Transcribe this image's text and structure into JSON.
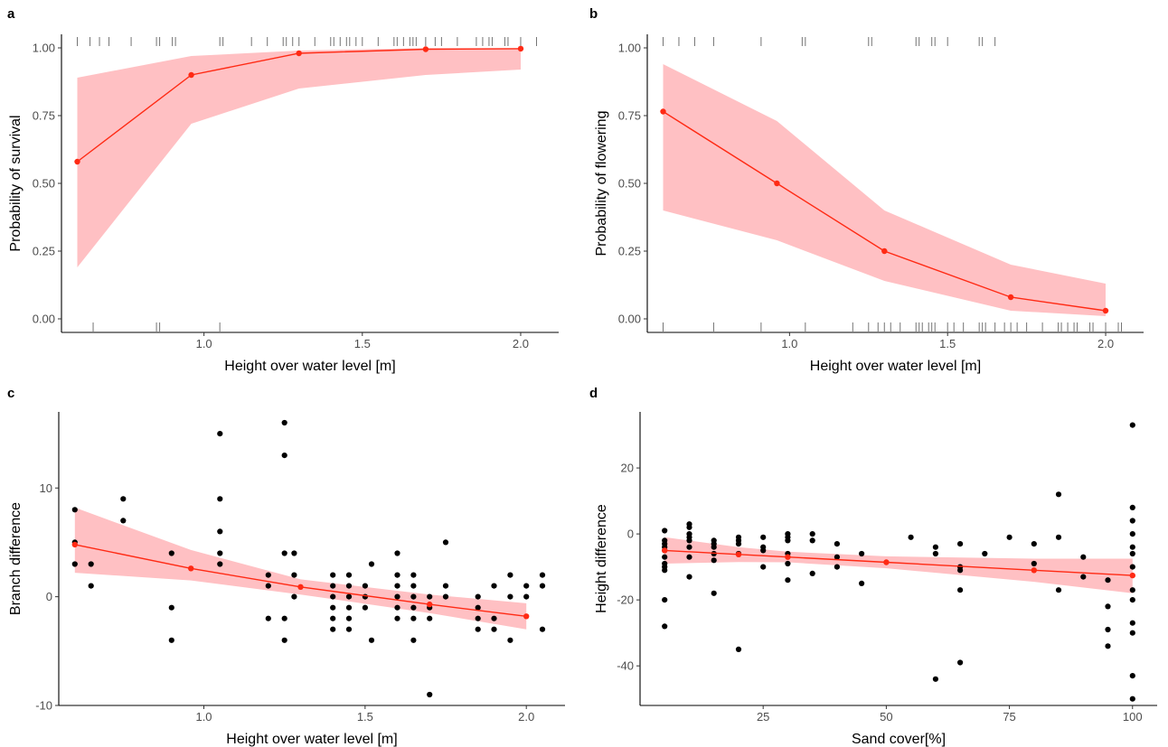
{
  "chart_data": [
    {
      "tag": "a",
      "type": "line",
      "xlabel": "Height over water level [m]",
      "ylabel": "Probability of survival",
      "xlim": [
        0.55,
        2.12
      ],
      "ylim": [
        -0.05,
        1.05
      ],
      "xticks": [
        {
          "v": 1.0,
          "t": "1.0"
        },
        {
          "v": 1.5,
          "t": "1.5"
        },
        {
          "v": 2.0,
          "t": "2.0"
        }
      ],
      "yticks": [
        {
          "v": 0,
          "t": "0.00"
        },
        {
          "v": 0.25,
          "t": "0.25"
        },
        {
          "v": 0.5,
          "t": "0.50"
        },
        {
          "v": 0.75,
          "t": "0.75"
        },
        {
          "v": 1.0,
          "t": "1.00"
        }
      ],
      "grid": false,
      "fit": {
        "x": [
          0.6,
          0.96,
          1.3,
          1.7,
          2.0
        ],
        "y": [
          0.58,
          0.9,
          0.98,
          0.995,
          0.997
        ],
        "lower": [
          0.19,
          0.72,
          0.85,
          0.9,
          0.92
        ],
        "upper": [
          0.89,
          0.97,
          0.99,
          0.999,
          0.999
        ]
      },
      "rug_top": [
        0.6,
        0.64,
        0.67,
        0.7,
        0.77,
        0.85,
        0.86,
        0.9,
        0.91,
        1.05,
        1.06,
        1.15,
        1.2,
        1.25,
        1.26,
        1.28,
        1.3,
        1.35,
        1.4,
        1.41,
        1.43,
        1.45,
        1.46,
        1.48,
        1.5,
        1.55,
        1.6,
        1.61,
        1.63,
        1.65,
        1.66,
        1.67,
        1.7,
        1.73,
        1.75,
        1.8,
        1.86,
        1.88,
        1.9,
        1.91,
        1.95,
        1.96,
        2.0,
        2.05
      ],
      "rug_bottom": [
        0.65,
        0.85,
        0.86,
        1.05
      ]
    },
    {
      "tag": "b",
      "type": "line",
      "xlabel": "Height over water level [m]",
      "ylabel": "Probability of flowering",
      "xlim": [
        0.55,
        2.12
      ],
      "ylim": [
        -0.05,
        1.05
      ],
      "xticks": [
        {
          "v": 1.0,
          "t": "1.0"
        },
        {
          "v": 1.5,
          "t": "1.5"
        },
        {
          "v": 2.0,
          "t": "2.0"
        }
      ],
      "yticks": [
        {
          "v": 0,
          "t": "0.00"
        },
        {
          "v": 0.25,
          "t": "0.25"
        },
        {
          "v": 0.5,
          "t": "0.50"
        },
        {
          "v": 0.75,
          "t": "0.75"
        },
        {
          "v": 1.0,
          "t": "1.00"
        }
      ],
      "grid": false,
      "fit": {
        "x": [
          0.6,
          0.96,
          1.3,
          1.7,
          2.0
        ],
        "y": [
          0.765,
          0.5,
          0.25,
          0.08,
          0.03
        ],
        "lower": [
          0.4,
          0.29,
          0.14,
          0.03,
          0.01
        ],
        "upper": [
          0.94,
          0.73,
          0.4,
          0.2,
          0.13
        ]
      },
      "rug_top": [
        0.6,
        0.65,
        0.7,
        0.76,
        0.91,
        1.04,
        1.05,
        1.25,
        1.26,
        1.4,
        1.41,
        1.45,
        1.46,
        1.5,
        1.6,
        1.61,
        1.65
      ],
      "rug_bottom": [
        0.6,
        0.76,
        0.91,
        1.05,
        1.2,
        1.25,
        1.28,
        1.3,
        1.32,
        1.35,
        1.4,
        1.41,
        1.42,
        1.44,
        1.45,
        1.46,
        1.5,
        1.52,
        1.55,
        1.6,
        1.61,
        1.62,
        1.65,
        1.68,
        1.7,
        1.72,
        1.75,
        1.8,
        1.85,
        1.86,
        1.88,
        1.9,
        1.91,
        1.95,
        1.96,
        2.0,
        2.04,
        2.05
      ]
    },
    {
      "tag": "c",
      "type": "scatter",
      "xlabel": "Height over water level [m]",
      "ylabel": "Branch difference",
      "xlim": [
        0.55,
        2.12
      ],
      "ylim": [
        -10,
        17
      ],
      "xticks": [
        {
          "v": 1.0,
          "t": "1.0"
        },
        {
          "v": 1.5,
          "t": "1.5"
        },
        {
          "v": 2.0,
          "t": "2.0"
        }
      ],
      "yticks": [
        {
          "v": -10,
          "t": "-10"
        },
        {
          "v": 0,
          "t": "0"
        },
        {
          "v": 10,
          "t": "10"
        }
      ],
      "grid": false,
      "fit": {
        "x": [
          0.6,
          0.96,
          1.3,
          1.7,
          2.0
        ],
        "y": [
          4.8,
          2.6,
          0.9,
          -0.7,
          -1.8
        ],
        "lower": [
          2.2,
          1.5,
          0.2,
          -1.5,
          -3.0
        ],
        "upper": [
          8.2,
          4.3,
          1.6,
          0.2,
          -0.6
        ]
      },
      "points": [
        [
          0.6,
          8
        ],
        [
          0.6,
          5
        ],
        [
          0.6,
          3
        ],
        [
          0.65,
          3
        ],
        [
          0.65,
          1
        ],
        [
          0.75,
          9
        ],
        [
          0.75,
          7
        ],
        [
          0.9,
          4
        ],
        [
          0.9,
          -1
        ],
        [
          0.9,
          -4
        ],
        [
          1.05,
          15
        ],
        [
          1.05,
          9
        ],
        [
          1.05,
          6
        ],
        [
          1.05,
          4
        ],
        [
          1.05,
          3
        ],
        [
          1.2,
          2
        ],
        [
          1.2,
          1
        ],
        [
          1.2,
          -2
        ],
        [
          1.25,
          16
        ],
        [
          1.25,
          13
        ],
        [
          1.25,
          4
        ],
        [
          1.25,
          -2
        ],
        [
          1.25,
          -4
        ],
        [
          1.28,
          4
        ],
        [
          1.28,
          2
        ],
        [
          1.28,
          0
        ],
        [
          1.4,
          2
        ],
        [
          1.4,
          1
        ],
        [
          1.4,
          0
        ],
        [
          1.4,
          -1
        ],
        [
          1.4,
          -2
        ],
        [
          1.4,
          -3
        ],
        [
          1.45,
          2
        ],
        [
          1.45,
          1
        ],
        [
          1.45,
          0
        ],
        [
          1.45,
          -1
        ],
        [
          1.45,
          -2
        ],
        [
          1.45,
          -3
        ],
        [
          1.5,
          1
        ],
        [
          1.5,
          0
        ],
        [
          1.5,
          -1
        ],
        [
          1.52,
          3
        ],
        [
          1.52,
          -4
        ],
        [
          1.6,
          4
        ],
        [
          1.6,
          2
        ],
        [
          1.6,
          1
        ],
        [
          1.6,
          0
        ],
        [
          1.6,
          -1
        ],
        [
          1.6,
          -2
        ],
        [
          1.65,
          2
        ],
        [
          1.65,
          1
        ],
        [
          1.65,
          0
        ],
        [
          1.65,
          -1
        ],
        [
          1.65,
          -2
        ],
        [
          1.65,
          -4
        ],
        [
          1.7,
          0
        ],
        [
          1.7,
          -1
        ],
        [
          1.7,
          -2
        ],
        [
          1.7,
          -9
        ],
        [
          1.75,
          5
        ],
        [
          1.75,
          1
        ],
        [
          1.75,
          0
        ],
        [
          1.85,
          0
        ],
        [
          1.85,
          -1
        ],
        [
          1.85,
          -2
        ],
        [
          1.85,
          -3
        ],
        [
          1.9,
          1
        ],
        [
          1.9,
          -2
        ],
        [
          1.9,
          -3
        ],
        [
          1.95,
          2
        ],
        [
          1.95,
          0
        ],
        [
          1.95,
          -4
        ],
        [
          2.0,
          1
        ],
        [
          2.0,
          0
        ],
        [
          2.05,
          2
        ],
        [
          2.05,
          1
        ],
        [
          2.05,
          -3
        ]
      ]
    },
    {
      "tag": "d",
      "type": "scatter",
      "xlabel": "Sand cover[%]",
      "ylabel": "Height difference",
      "xlim": [
        0,
        105
      ],
      "ylim": [
        -52,
        37
      ],
      "xticks": [
        {
          "v": 25,
          "t": "25"
        },
        {
          "v": 50,
          "t": "50"
        },
        {
          "v": 75,
          "t": "75"
        },
        {
          "v": 100,
          "t": "100"
        }
      ],
      "yticks": [
        {
          "v": -40,
          "t": "-40"
        },
        {
          "v": -20,
          "t": "-20"
        },
        {
          "v": 0,
          "t": "0"
        },
        {
          "v": 20,
          "t": "20"
        }
      ],
      "grid": false,
      "fit": {
        "x": [
          5,
          20,
          30,
          50,
          80,
          100
        ],
        "y": [
          -5,
          -6.2,
          -7,
          -8.6,
          -11,
          -12.6
        ],
        "lower": [
          -9,
          -8.5,
          -8.6,
          -10.4,
          -14.5,
          -18
        ],
        "upper": [
          -1,
          -4,
          -5.4,
          -6.8,
          -7.5,
          -7.5
        ]
      },
      "points": [
        [
          5,
          1
        ],
        [
          5,
          -2
        ],
        [
          5,
          -3
        ],
        [
          5,
          -4
        ],
        [
          5,
          -5
        ],
        [
          5,
          -7
        ],
        [
          5,
          -9
        ],
        [
          5,
          -10
        ],
        [
          5,
          -11
        ],
        [
          5,
          -20
        ],
        [
          5,
          -28
        ],
        [
          10,
          3
        ],
        [
          10,
          2
        ],
        [
          10,
          0
        ],
        [
          10,
          -1
        ],
        [
          10,
          -2
        ],
        [
          10,
          -4
        ],
        [
          10,
          -7
        ],
        [
          10,
          -13
        ],
        [
          15,
          -2
        ],
        [
          15,
          -3
        ],
        [
          15,
          -4
        ],
        [
          15,
          -6
        ],
        [
          15,
          -8
        ],
        [
          15,
          -18
        ],
        [
          20,
          -1
        ],
        [
          20,
          -2
        ],
        [
          20,
          -3
        ],
        [
          20,
          -6
        ],
        [
          20,
          -35
        ],
        [
          25,
          -1
        ],
        [
          25,
          -4
        ],
        [
          25,
          -5
        ],
        [
          25,
          -10
        ],
        [
          30,
          0
        ],
        [
          30,
          -1
        ],
        [
          30,
          -2
        ],
        [
          30,
          -6
        ],
        [
          30,
          -9
        ],
        [
          30,
          -14
        ],
        [
          35,
          0
        ],
        [
          35,
          -2
        ],
        [
          35,
          -12
        ],
        [
          40,
          -3
        ],
        [
          40,
          -7
        ],
        [
          40,
          -10
        ],
        [
          45,
          -6
        ],
        [
          45,
          -15
        ],
        [
          55,
          -1
        ],
        [
          60,
          -4
        ],
        [
          60,
          -6
        ],
        [
          60,
          -44
        ],
        [
          65,
          -3
        ],
        [
          65,
          -10
        ],
        [
          65,
          -11
        ],
        [
          65,
          -17
        ],
        [
          65,
          -39
        ],
        [
          70,
          -6
        ],
        [
          75,
          -1
        ],
        [
          80,
          -3
        ],
        [
          80,
          -9
        ],
        [
          85,
          12
        ],
        [
          85,
          -1
        ],
        [
          85,
          -17
        ],
        [
          90,
          -7
        ],
        [
          90,
          -13
        ],
        [
          95,
          -14
        ],
        [
          95,
          -22
        ],
        [
          95,
          -29
        ],
        [
          95,
          -34
        ],
        [
          100,
          33
        ],
        [
          100,
          8
        ],
        [
          100,
          4
        ],
        [
          100,
          0
        ],
        [
          100,
          -4
        ],
        [
          100,
          -6
        ],
        [
          100,
          -10
        ],
        [
          100,
          -17
        ],
        [
          100,
          -20
        ],
        [
          100,
          -27
        ],
        [
          100,
          -30
        ],
        [
          100,
          -43
        ],
        [
          100,
          -50
        ]
      ]
    }
  ]
}
